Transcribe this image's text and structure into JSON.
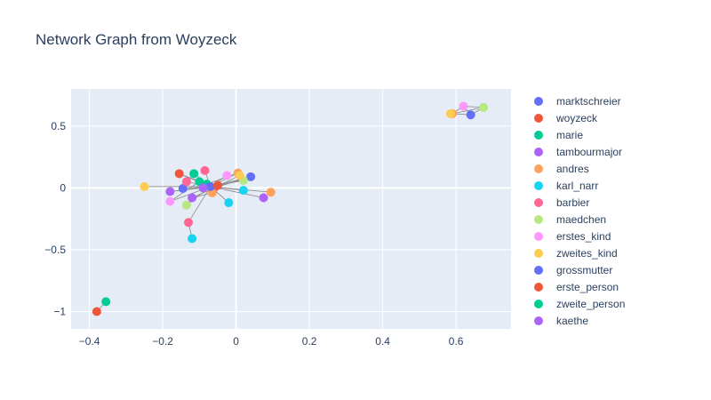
{
  "chart_data": {
    "type": "scatter",
    "title": "Network Graph from Woyzeck",
    "xlabel": "",
    "ylabel": "",
    "xlim": [
      -0.45,
      0.75
    ],
    "ylim": [
      -1.14,
      0.8
    ],
    "xticks": [
      -0.4,
      -0.2,
      0,
      0.2,
      0.4,
      0.6
    ],
    "xtick_labels": [
      "−0.4",
      "−0.2",
      "0",
      "0.2",
      "0.4",
      "0.6"
    ],
    "yticks": [
      0.5,
      0,
      -0.5,
      -1
    ],
    "ytick_labels": [
      "0.5",
      "0",
      "−0.5",
      "−1"
    ],
    "grid": true,
    "legend_position": "right",
    "plot_background": "#e5ecf6",
    "edge_color": "#888888",
    "series": [
      {
        "name": "marktschreier",
        "color": "#636efa",
        "points": [
          [
            0.04,
            0.09
          ],
          [
            0.64,
            0.59
          ],
          [
            -0.145,
            -0.005
          ]
        ]
      },
      {
        "name": "woyzeck",
        "color": "#ef553b",
        "points": [
          [
            -0.155,
            0.115
          ],
          [
            -0.38,
            -1.0
          ],
          [
            -0.06,
            0.0
          ]
        ]
      },
      {
        "name": "marie",
        "color": "#00cc96",
        "points": [
          [
            -0.115,
            0.115
          ],
          [
            -0.355,
            -0.92
          ],
          [
            -0.08,
            0.03
          ]
        ]
      },
      {
        "name": "tambourmajor",
        "color": "#ab63fa",
        "points": [
          [
            0.075,
            -0.08
          ],
          [
            -0.18,
            -0.03
          ],
          [
            -0.12,
            -0.08
          ]
        ]
      },
      {
        "name": "andres",
        "color": "#ffa15a",
        "points": [
          [
            0.095,
            -0.035
          ],
          [
            0.59,
            0.6
          ],
          [
            -0.065,
            -0.04
          ],
          [
            0.005,
            0.12
          ]
        ]
      },
      {
        "name": "karl_narr",
        "color": "#19d3f3",
        "points": [
          [
            -0.12,
            -0.41
          ],
          [
            -0.02,
            -0.12
          ],
          [
            0.02,
            -0.02
          ]
        ]
      },
      {
        "name": "barbier",
        "color": "#ff6692",
        "points": [
          [
            -0.085,
            0.14
          ],
          [
            -0.135,
            0.05
          ],
          [
            -0.13,
            -0.28
          ]
        ]
      },
      {
        "name": "maedchen",
        "color": "#b6e880",
        "points": [
          [
            0.675,
            0.65
          ],
          [
            -0.135,
            -0.14
          ],
          [
            0.02,
            0.06
          ]
        ]
      },
      {
        "name": "erstes_kind",
        "color": "#ff97ff",
        "points": [
          [
            0.62,
            0.66
          ],
          [
            -0.18,
            -0.11
          ],
          [
            -0.025,
            0.1
          ]
        ]
      },
      {
        "name": "zweites_kind",
        "color": "#fecb52",
        "points": [
          [
            -0.25,
            0.01
          ],
          [
            0.585,
            0.6
          ],
          [
            0.01,
            0.1
          ]
        ]
      },
      {
        "name": "grossmutter",
        "color": "#636efa",
        "points": [
          [
            -0.07,
            0.01
          ]
        ]
      },
      {
        "name": "erste_person",
        "color": "#ef553b",
        "points": [
          [
            -0.05,
            0.02
          ]
        ]
      },
      {
        "name": "zweite_person",
        "color": "#00cc96",
        "points": [
          [
            -0.1,
            0.05
          ]
        ]
      },
      {
        "name": "kaethe",
        "color": "#ab63fa",
        "points": [
          [
            -0.09,
            0.0
          ]
        ]
      }
    ],
    "edges": [
      [
        [
          0.59,
          0.6
        ],
        [
          0.62,
          0.66
        ]
      ],
      [
        [
          0.62,
          0.66
        ],
        [
          0.675,
          0.65
        ]
      ],
      [
        [
          0.675,
          0.65
        ],
        [
          0.64,
          0.59
        ]
      ],
      [
        [
          0.64,
          0.59
        ],
        [
          0.59,
          0.6
        ]
      ],
      [
        [
          0.59,
          0.6
        ],
        [
          0.675,
          0.65
        ]
      ],
      [
        [
          0.62,
          0.66
        ],
        [
          0.64,
          0.59
        ]
      ],
      [
        [
          -0.38,
          -1.0
        ],
        [
          -0.355,
          -0.92
        ]
      ],
      [
        [
          -0.07,
          0.01
        ],
        [
          -0.25,
          0.01
        ]
      ],
      [
        [
          -0.07,
          0.01
        ],
        [
          0.04,
          0.09
        ]
      ],
      [
        [
          -0.07,
          0.01
        ],
        [
          -0.155,
          0.115
        ]
      ],
      [
        [
          -0.07,
          0.01
        ],
        [
          -0.115,
          0.115
        ]
      ],
      [
        [
          -0.07,
          0.01
        ],
        [
          -0.085,
          0.14
        ]
      ],
      [
        [
          -0.07,
          0.01
        ],
        [
          0.005,
          0.12
        ]
      ],
      [
        [
          -0.07,
          0.01
        ],
        [
          0.095,
          -0.035
        ]
      ],
      [
        [
          -0.07,
          0.01
        ],
        [
          0.075,
          -0.08
        ]
      ],
      [
        [
          -0.07,
          0.01
        ],
        [
          -0.18,
          -0.03
        ]
      ],
      [
        [
          -0.07,
          0.01
        ],
        [
          -0.18,
          -0.11
        ]
      ],
      [
        [
          -0.07,
          0.01
        ],
        [
          -0.135,
          -0.14
        ]
      ],
      [
        [
          -0.07,
          0.01
        ],
        [
          -0.13,
          -0.28
        ]
      ],
      [
        [
          -0.07,
          0.01
        ],
        [
          -0.02,
          -0.12
        ]
      ],
      [
        [
          -0.07,
          0.01
        ],
        [
          0.02,
          -0.02
        ]
      ],
      [
        [
          -0.07,
          0.01
        ],
        [
          -0.135,
          0.05
        ]
      ],
      [
        [
          -0.07,
          0.01
        ],
        [
          -0.025,
          0.1
        ]
      ],
      [
        [
          -0.07,
          0.01
        ],
        [
          0.02,
          0.06
        ]
      ],
      [
        [
          -0.07,
          0.01
        ],
        [
          -0.145,
          -0.005
        ]
      ],
      [
        [
          -0.06,
          0.0
        ],
        [
          0.04,
          0.09
        ]
      ],
      [
        [
          -0.06,
          0.0
        ],
        [
          -0.12,
          -0.08
        ]
      ],
      [
        [
          -0.06,
          0.0
        ],
        [
          0.01,
          0.1
        ]
      ],
      [
        [
          -0.08,
          0.03
        ],
        [
          0.005,
          0.12
        ]
      ],
      [
        [
          -0.08,
          0.03
        ],
        [
          -0.155,
          0.115
        ]
      ],
      [
        [
          -0.1,
          0.05
        ],
        [
          -0.18,
          -0.11
        ]
      ],
      [
        [
          -0.13,
          -0.28
        ],
        [
          -0.12,
          -0.41
        ]
      ],
      [
        [
          -0.12,
          -0.08
        ],
        [
          -0.135,
          -0.14
        ]
      ],
      [
        [
          -0.05,
          0.02
        ],
        [
          0.02,
          0.06
        ]
      ],
      [
        [
          -0.09,
          0.0
        ],
        [
          -0.18,
          -0.03
        ]
      ],
      [
        [
          -0.135,
          0.05
        ],
        [
          -0.115,
          0.115
        ]
      ],
      [
        [
          -0.065,
          -0.04
        ],
        [
          -0.12,
          -0.08
        ]
      ]
    ]
  }
}
